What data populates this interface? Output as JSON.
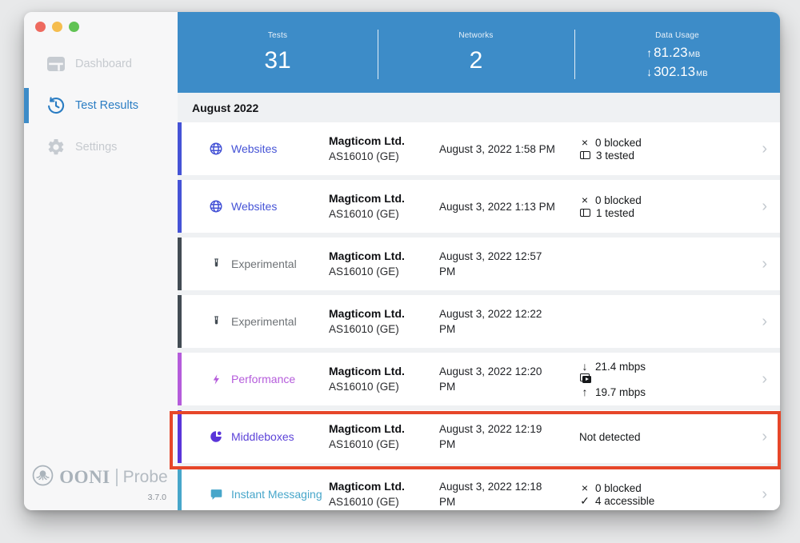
{
  "app": {
    "name": "OONI Probe"
  },
  "window": {
    "traffic_lights": [
      {
        "name": "close",
        "color": "#ee6a5f"
      },
      {
        "name": "minimize",
        "color": "#f5bd4f"
      },
      {
        "name": "zoom",
        "color": "#61c354"
      }
    ]
  },
  "icons": {
    "chevron_right": "›",
    "upload_arrow": "↑",
    "download_arrow": "↓",
    "blocked_x": "×",
    "accessible_check": "✓"
  },
  "colors": {
    "header_blue": "#3d8cc8",
    "active_blue": "#2b7dc3",
    "annotation_red": "#e64629"
  },
  "sidebar": {
    "items": [
      {
        "label": "Dashboard",
        "icon": "dashboard-icon",
        "active": false
      },
      {
        "label": "Test Results",
        "icon": "history-clock-icon",
        "active": true
      },
      {
        "label": "Settings",
        "icon": "gear-icon",
        "active": false
      }
    ],
    "brand": {
      "name": "OONI",
      "product": "Probe",
      "version": "3.7.0"
    }
  },
  "header": {
    "stats": [
      {
        "label": "Tests",
        "value": "31"
      },
      {
        "label": "Networks",
        "value": "2"
      }
    ],
    "data_usage": {
      "label": "Data Usage",
      "upload": "81.23",
      "download": "302.13",
      "unit": "MB"
    }
  },
  "section": {
    "title": "August 2022"
  },
  "rows": [
    {
      "name": "Websites",
      "icon": "globe",
      "accent": "#4553d6",
      "name_color": "#4553d6",
      "network": "Magticom Ltd.",
      "asn": "AS16010 (GE)",
      "date_line1": "August 3, 2022 1:58 PM",
      "date_line2": "",
      "results": [
        {
          "icon": "blocked_x",
          "text": "0 blocked"
        },
        {
          "icon": "browser",
          "text": "3 tested"
        }
      ],
      "highlighted": false
    },
    {
      "name": "Websites",
      "icon": "globe",
      "accent": "#4553d6",
      "name_color": "#4553d6",
      "network": "Magticom Ltd.",
      "asn": "AS16010 (GE)",
      "date_line1": "August 3, 2022 1:13 PM",
      "date_line2": "",
      "results": [
        {
          "icon": "blocked_x",
          "text": "0 blocked"
        },
        {
          "icon": "browser",
          "text": "1 tested"
        }
      ],
      "highlighted": false
    },
    {
      "name": "Experimental",
      "icon": "tube",
      "accent": "#434c54",
      "name_color": "#6e7276",
      "network": "Magticom Ltd.",
      "asn": "AS16010 (GE)",
      "date_line1": "August 3, 2022 12:57",
      "date_line2": "PM",
      "results": [],
      "highlighted": false
    },
    {
      "name": "Experimental",
      "icon": "tube",
      "accent": "#434c54",
      "name_color": "#6e7276",
      "network": "Magticom Ltd.",
      "asn": "AS16010 (GE)",
      "date_line1": "August 3, 2022 12:22",
      "date_line2": "PM",
      "results": [],
      "highlighted": false
    },
    {
      "name": "Performance",
      "icon": "bolt",
      "accent": "#b55cdb",
      "name_color": "#b55cdb",
      "network": "Magticom Ltd.",
      "asn": "AS16010 (GE)",
      "date_line1": "August 3, 2022 12:20",
      "date_line2": "PM",
      "results": [
        {
          "icon": "download_arrow",
          "text": "21.4 mbps"
        },
        {
          "icon": "video",
          "text": ""
        },
        {
          "icon": "upload_arrow",
          "text": "19.7 mbps"
        }
      ],
      "highlighted": false
    },
    {
      "name": "Middleboxes",
      "icon": "middlebox",
      "accent": "#5a35d9",
      "name_color": "#5c43d8",
      "network": "Magticom Ltd.",
      "asn": "AS16010 (GE)",
      "date_line1": "August 3, 2022 12:19",
      "date_line2": "PM",
      "results": [
        {
          "icon": "",
          "text": "Not detected"
        }
      ],
      "highlighted": true
    },
    {
      "name": "Instant Messaging",
      "icon": "chat",
      "accent": "#47a6ca",
      "name_color": "#47a6ca",
      "network": "Magticom Ltd.",
      "asn": "AS16010 (GE)",
      "date_line1": "August 3, 2022 12:18",
      "date_line2": "PM",
      "results": [
        {
          "icon": "blocked_x",
          "text": "0 blocked"
        },
        {
          "icon": "accessible_check",
          "text": "4 accessible"
        }
      ],
      "highlighted": false
    }
  ],
  "annotation": {
    "shape": "rectangle",
    "color": "#e64629",
    "target": "Middleboxes row"
  }
}
